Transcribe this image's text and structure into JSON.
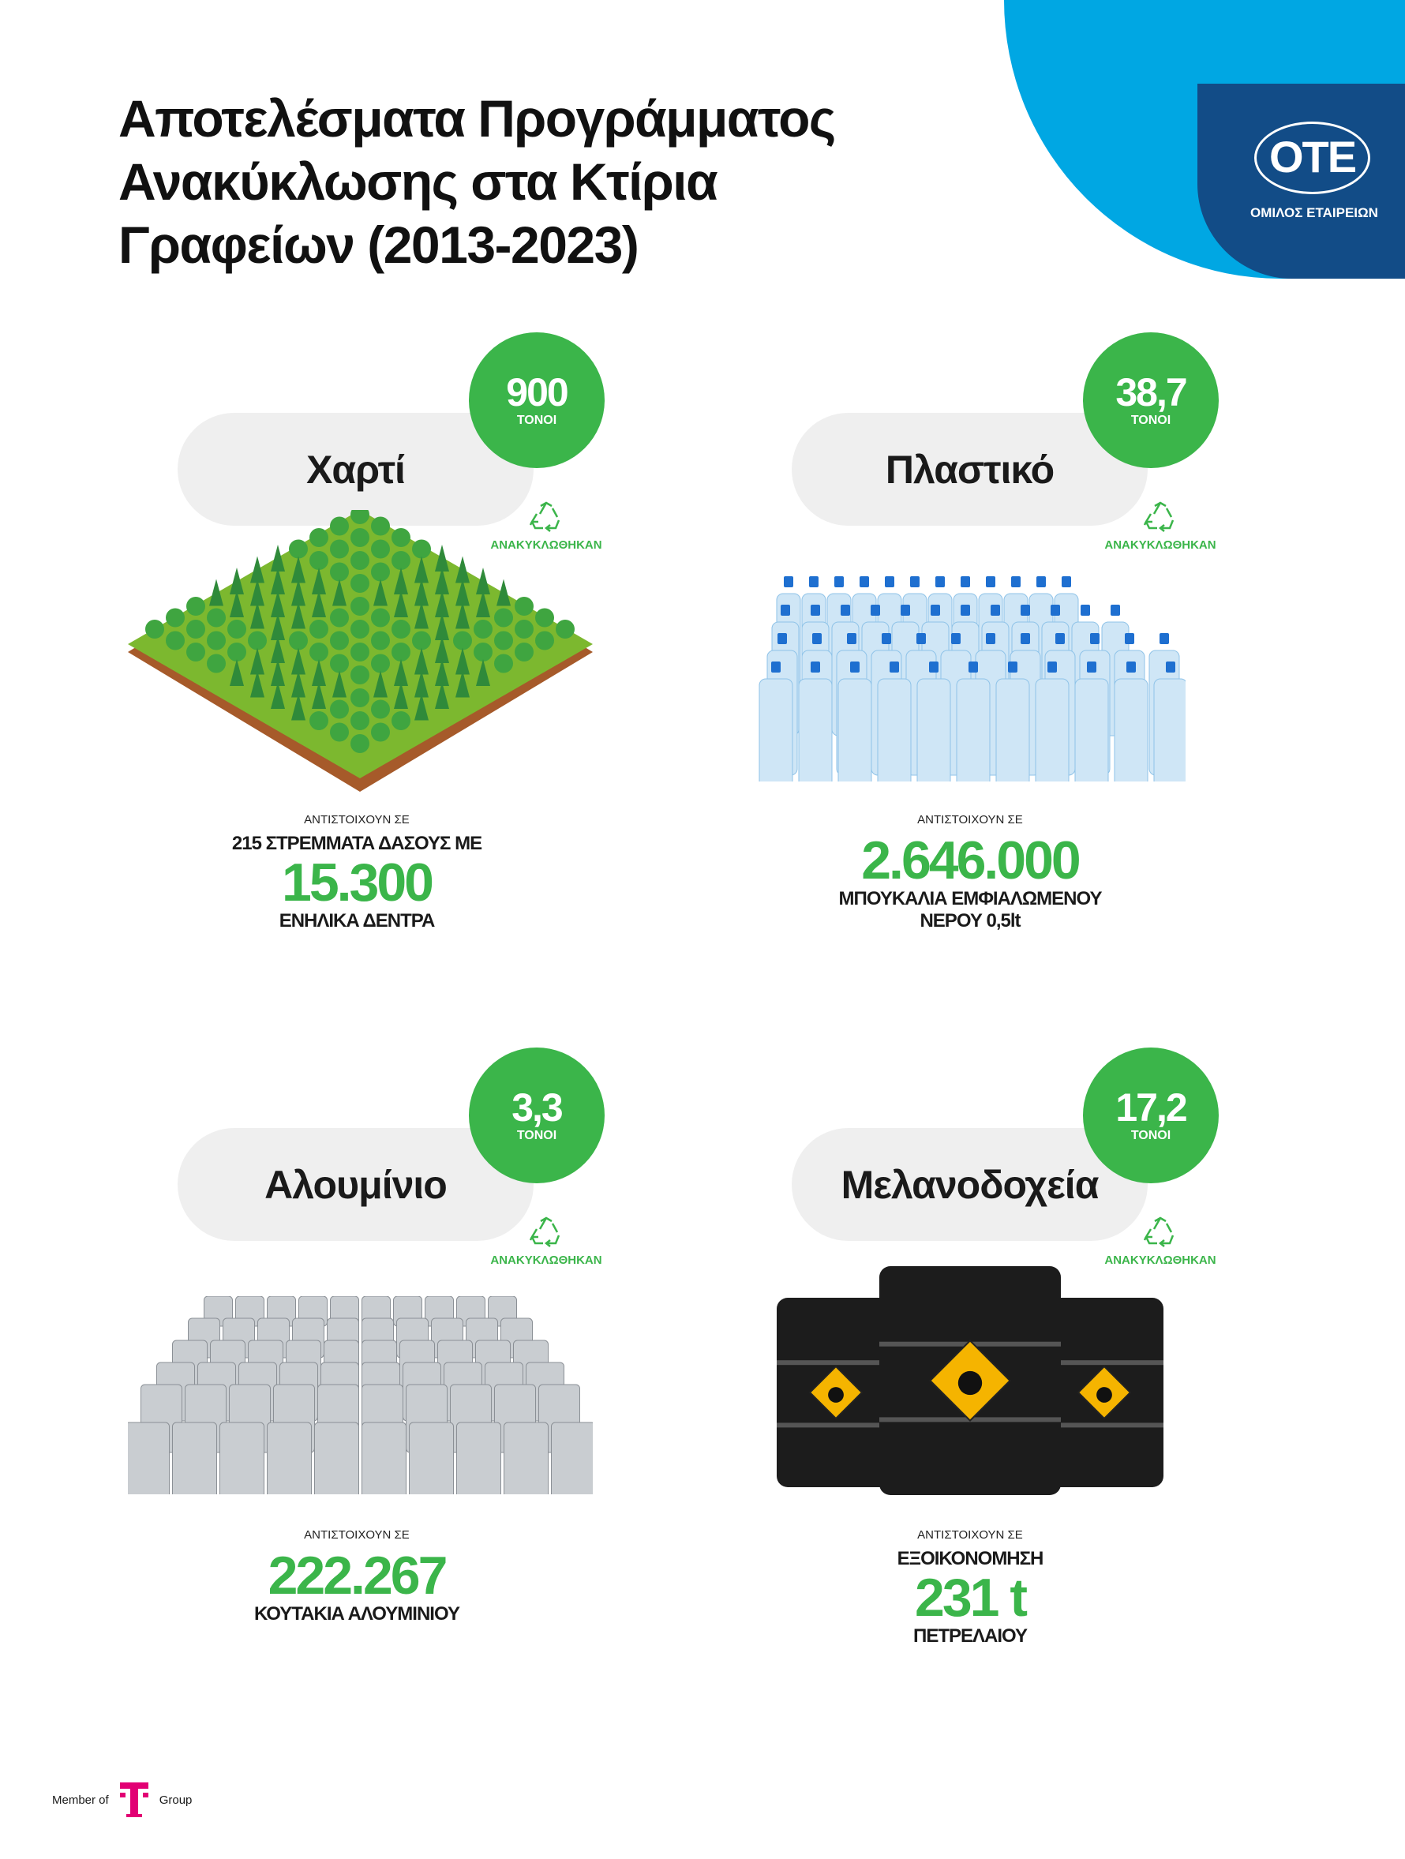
{
  "title": [
    "Αποτελέσματα Προγράμματος",
    "Ανακύκλωσης στα Κτίρια",
    "Γραφείων (2013-2023)"
  ],
  "logo": {
    "name": "ΟΤΕ",
    "subtitle": "ΟΜΙΛΟΣ ΕΤΑΙΡΕΙΩΝ",
    "colors": {
      "cyan": "#00a7e3",
      "navy": "#124c87"
    }
  },
  "accent_color": "#3bb54a",
  "recycled_label": "ΑΝΑΚΥΚΛΩΘΗΚΑΝ",
  "cards": [
    {
      "material": "Χαρτί",
      "amount": "900",
      "unit": "ΤΟΝΟΙ",
      "intro": "ΑΝΤΙΣΤΟΙΧΟΥΝ ΣΕ",
      "pre": "215 ΣΤΡΕΜΜΑΤΑ ΔΑΣΟΥΣ ΜΕ",
      "value": "15.300",
      "post": [
        "ΕΝΗΛΙΚΑ ΔΕΝΤΡΑ"
      ],
      "image": "forest"
    },
    {
      "material": "Πλαστικό",
      "amount": "38,7",
      "unit": "ΤΟΝΟΙ",
      "intro": "ΑΝΤΙΣΤΟΙΧΟΥΝ ΣΕ",
      "pre": "",
      "value": "2.646.000",
      "post": [
        "ΜΠΟΥΚΑΛΙΑ ΕΜΦΙΑΛΩΜΕΝΟΥ",
        "ΝΕΡΟΥ 0,5lt"
      ],
      "image": "water-bottles"
    },
    {
      "material": "Αλουμίνιο",
      "amount": "3,3",
      "unit": "ΤΟΝΟΙ",
      "intro": "ΑΝΤΙΣΤΟΙΧΟΥΝ ΣΕ",
      "pre": "",
      "value": "222.267",
      "post": [
        "ΚΟΥΤΑΚΙΑ ΑΛΟΥΜΙΝΙΟΥ"
      ],
      "image": "aluminium-cans"
    },
    {
      "material": "Μελανοδοχεία",
      "amount": "17,2",
      "unit": "ΤΟΝΟΙ",
      "intro": "ΑΝΤΙΣΤΟΙΧΟΥΝ ΣΕ",
      "pre": "ΕΞΟΙΚΟΝΟΜΗΣΗ",
      "value": "231 t",
      "post": [
        "ΠΕΤΡΕΛΑΙΟΥ"
      ],
      "image": "oil-barrels"
    }
  ],
  "footer": {
    "member_of": "Member of",
    "group": "Group",
    "tlogo_color": "#e20074"
  }
}
